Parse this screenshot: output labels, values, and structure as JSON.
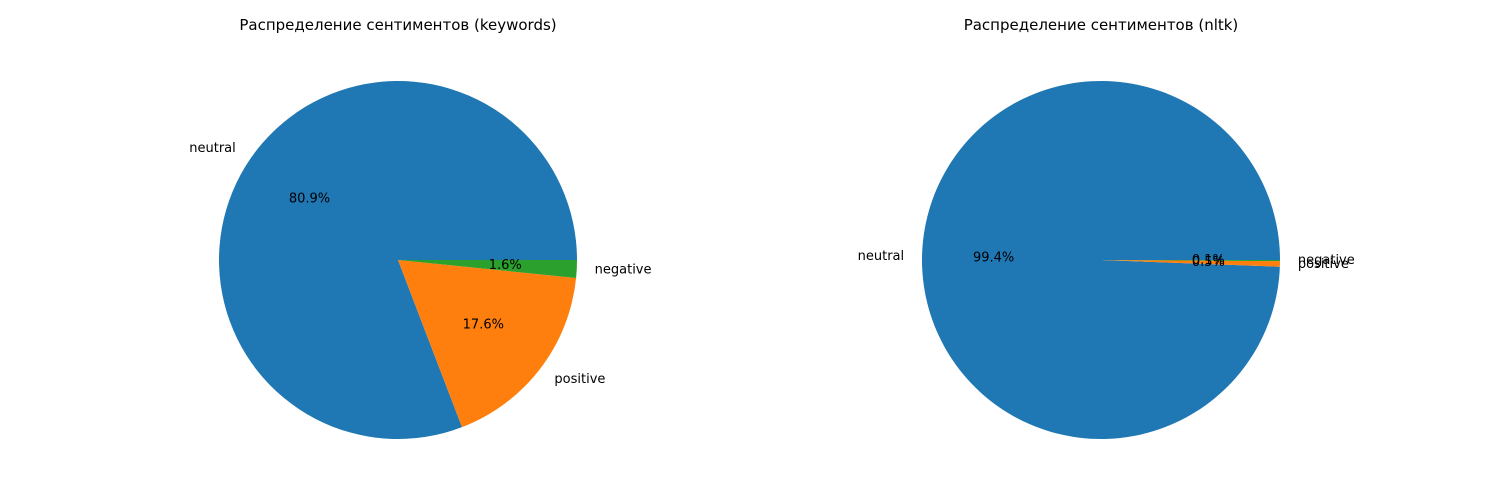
{
  "chart_data": [
    {
      "type": "pie",
      "title": "Распределение сентиментов (keywords)",
      "slices": [
        {
          "label": "neutral",
          "value": 80.9,
          "pct_label": "80.9%",
          "color": "#1f77b4"
        },
        {
          "label": "positive",
          "value": 17.6,
          "pct_label": "17.6%",
          "color": "#ff7f0e"
        },
        {
          "label": "negative",
          "value": 1.6,
          "pct_label": "1.6%",
          "color": "#2ca02c"
        }
      ],
      "start_angle_deg": 0,
      "direction": "counterclockwise"
    },
    {
      "type": "pie",
      "title": "Распределение сентиментов (nltk)",
      "slices": [
        {
          "label": "neutral",
          "value": 99.4,
          "pct_label": "99.4%",
          "color": "#1f77b4"
        },
        {
          "label": "positive",
          "value": 0.5,
          "pct_label": "0.5%",
          "color": "#ff7f0e"
        },
        {
          "label": "negative",
          "value": 0.1,
          "pct_label": "0.1%",
          "color": "#2ca02c"
        }
      ],
      "start_angle_deg": 0,
      "direction": "counterclockwise"
    }
  ]
}
